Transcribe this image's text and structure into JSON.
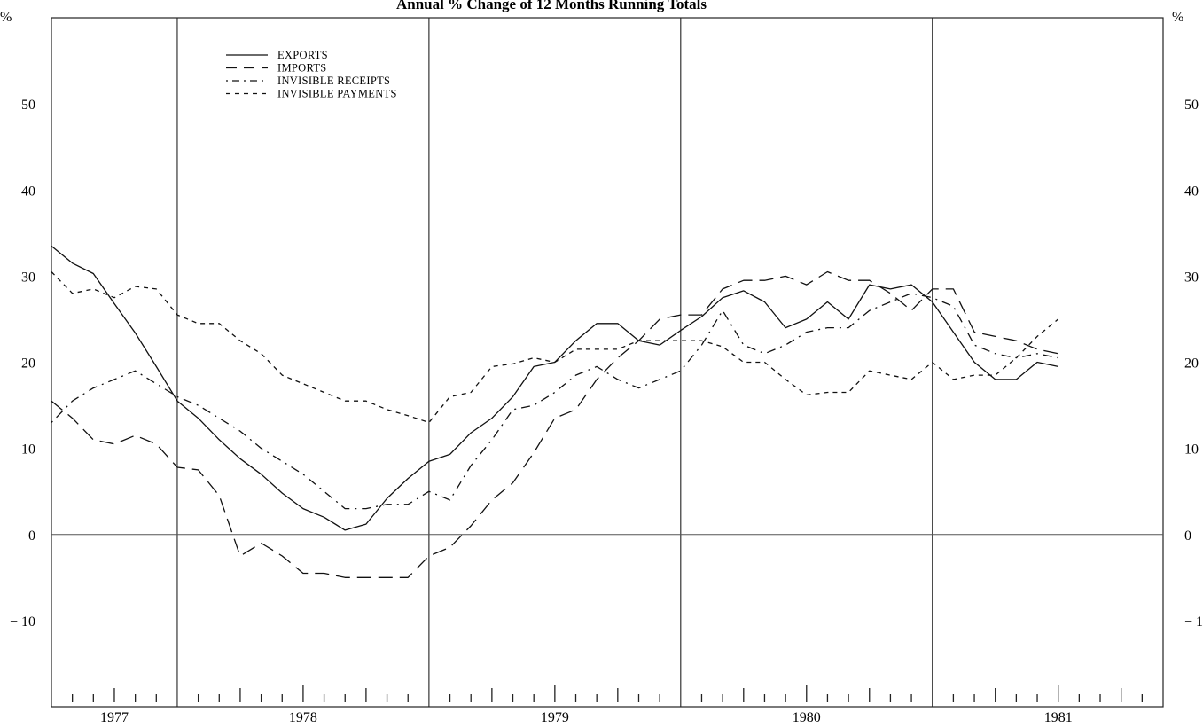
{
  "chart_data": {
    "type": "line",
    "title": "Annual % Change of 12 Months Running Totals",
    "ylabel_left": "%",
    "ylabel_right": "%",
    "ylim": [
      -20,
      60
    ],
    "yticks": [
      -10,
      0,
      10,
      20,
      30,
      40,
      50
    ],
    "ytick_labels": [
      "− 10",
      "0",
      "10",
      "20",
      "30",
      "40",
      "50"
    ],
    "x_start": "1977-01",
    "x_end": "1981-06",
    "year_dividers": [
      "1977-07",
      "1978-07",
      "1979-07",
      "1980-07"
    ],
    "x_year_labels": [
      {
        "label": "1977",
        "at": "1977-04"
      },
      {
        "label": "1978",
        "at": "1978-01"
      },
      {
        "label": "1979",
        "at": "1979-01"
      },
      {
        "label": "1980",
        "at": "1980-01"
      },
      {
        "label": "1981",
        "at": "1981-01"
      }
    ],
    "zero_line": true,
    "legend": {
      "placement": "top-left",
      "entries": [
        "EXPORTS",
        "IMPORTS",
        "INVISIBLE RECEIPTS",
        "INVISIBLE PAYMENTS"
      ]
    },
    "series": [
      {
        "name": "EXPORTS",
        "style": "solid",
        "values": [
          33.5,
          31.5,
          30.3,
          26.8,
          23.4,
          19.5,
          15.5,
          13.5,
          11,
          8.8,
          7,
          4.8,
          3,
          2,
          0.5,
          1.2,
          4.2,
          6.5,
          8.5,
          9.3,
          11.8,
          13.5,
          16,
          19.5,
          20,
          22.5,
          24.5,
          24.5,
          22.5,
          22,
          23.7,
          25.3,
          27.5,
          28.3,
          27,
          24,
          25,
          27,
          25,
          29,
          28.5,
          29,
          27,
          23.5,
          20,
          18,
          18,
          20,
          19.5
        ]
      },
      {
        "name": "IMPORTS",
        "style": "long-dash",
        "values": [
          15.5,
          13.5,
          11,
          10.5,
          11.5,
          10.5,
          7.8,
          7.5,
          4.5,
          -2.5,
          -1,
          -2.5,
          -4.5,
          -4.5,
          -5,
          -5,
          -5,
          -5,
          -2.5,
          -1.5,
          1,
          4,
          6,
          9.5,
          13.5,
          14.5,
          18,
          20.5,
          22.5,
          25,
          25.5,
          25.5,
          28.5,
          29.5,
          29.5,
          30,
          29,
          30.5,
          29.5,
          29.5,
          28,
          26,
          28.5,
          28.5,
          23.5,
          23,
          22.5,
          21.5,
          21
        ]
      },
      {
        "name": "INVISIBLE RECEIPTS",
        "style": "dash-dot",
        "values": [
          13,
          15.5,
          17,
          18,
          19,
          17.5,
          16,
          15,
          13.5,
          12,
          10,
          8.5,
          7,
          5,
          3,
          3,
          3.5,
          3.5,
          5,
          4,
          8,
          11,
          14.5,
          15,
          16.5,
          18.5,
          19.5,
          18,
          17,
          18,
          19,
          22,
          26,
          22,
          21,
          22,
          23.5,
          24,
          24,
          26,
          27,
          28,
          27.5,
          26.5,
          22,
          21,
          20.5,
          21,
          20.5
        ]
      },
      {
        "name": "INVISIBLE PAYMENTS",
        "style": "short-dash",
        "values": [
          30.5,
          28,
          28.5,
          27.5,
          28.8,
          28.5,
          25.5,
          24.5,
          24.5,
          22.5,
          21,
          18.5,
          17.5,
          16.5,
          15.5,
          15.5,
          14.5,
          13.8,
          13,
          16,
          16.5,
          19.5,
          19.8,
          20.5,
          20,
          21.5,
          21.5,
          21.5,
          22.5,
          22.5,
          22.5,
          22.5,
          21.8,
          20,
          20,
          18,
          16.2,
          16.5,
          16.5,
          19,
          18.5,
          18,
          20,
          18,
          18.5,
          18.5,
          20.5,
          23,
          25
        ]
      }
    ]
  }
}
